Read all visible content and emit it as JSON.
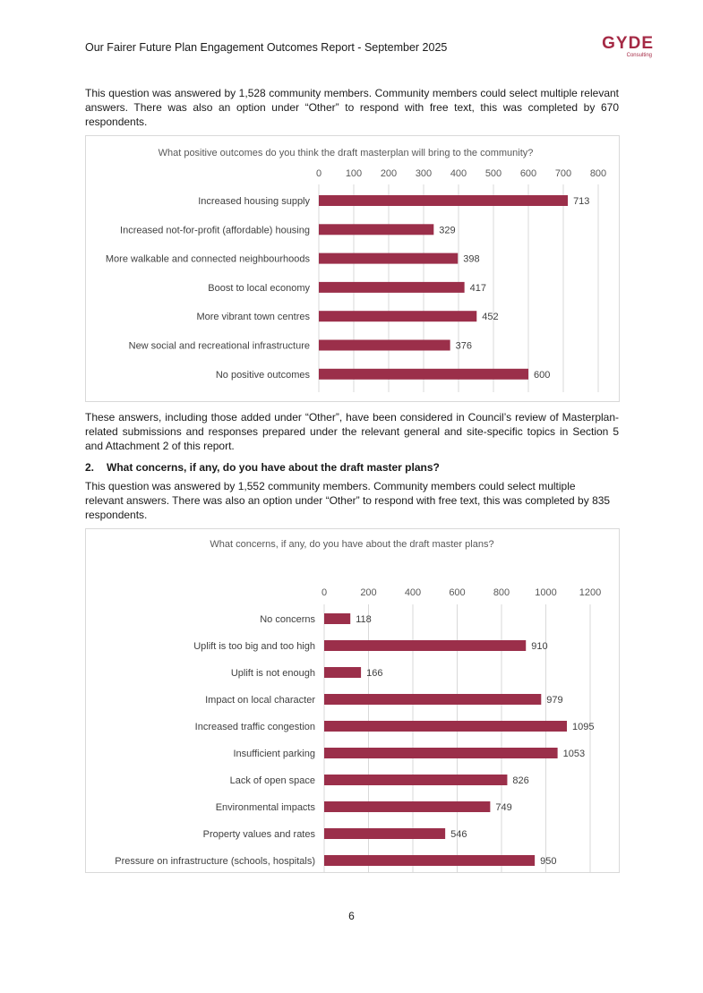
{
  "header": {
    "title": "Our Fairer Future Plan Engagement Outcomes Report - September 2025",
    "logo_word": "GYDE",
    "logo_sub": "Consulting"
  },
  "intro1": "This question was answered by 1,528 community members. Community members could select multiple relevant answers. There was also an option under “Other” to respond with free text, this was completed by 670 respondents.",
  "after_chart1": "These answers, including those added under “Other”, have been considered in Council’s review of Masterplan-related submissions and responses prepared under the relevant general and site-specific topics in Section 5 and Attachment 2 of this report.",
  "question2": {
    "number": "2.",
    "text": "What concerns, if any, do you have about the draft master plans?"
  },
  "intro2": "This question was answered by 1,552 community members. Community members could select multiple relevant answers. There was also an option under “Other” to respond with free text, this was completed by 835 respondents.",
  "page_number": "6",
  "colors": {
    "bar": "#9b2f4a",
    "grid": "#d9d9d9",
    "accent": "#a52a45"
  },
  "chart_data": [
    {
      "type": "bar",
      "orientation": "horizontal",
      "title": "What positive outcomes do you think the draft masterplan will bring to the community?",
      "categories": [
        "Increased housing supply",
        "Increased not-for-profit (affordable) housing",
        "More walkable and connected neighbourhoods",
        "Boost to local economy",
        "More vibrant town centres",
        "New social and recreational infrastructure",
        "No positive outcomes"
      ],
      "values": [
        713,
        329,
        398,
        417,
        452,
        376,
        600
      ],
      "xlim": [
        0,
        800
      ],
      "ticks": [
        0,
        100,
        200,
        300,
        400,
        500,
        600,
        700,
        800
      ],
      "axis_position": "top",
      "grid": true
    },
    {
      "type": "bar",
      "orientation": "horizontal",
      "title": "What concerns, if any, do you have about the draft master plans?",
      "categories": [
        "No concerns",
        "Uplift is too big and too high",
        "Uplift is not enough",
        "Impact on local character",
        "Increased traffic congestion",
        "Insufficient parking",
        "Lack of open space",
        "Environmental impacts",
        "Property values and rates",
        "Pressure on infrastructure (schools, hospitals)"
      ],
      "values": [
        118,
        910,
        166,
        979,
        1095,
        1053,
        826,
        749,
        546,
        950
      ],
      "xlim": [
        0,
        1200
      ],
      "ticks": [
        0,
        200,
        400,
        600,
        800,
        1000,
        1200
      ],
      "axis_position": "top",
      "grid": true
    }
  ]
}
